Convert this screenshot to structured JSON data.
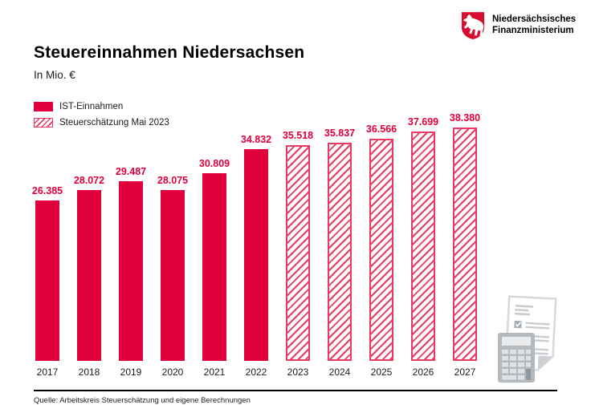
{
  "logo": {
    "org_line1": "Niedersächsisches",
    "org_line2": "Finanzministerium"
  },
  "header": {
    "title": "Steuereinnahmen Niedersachsen",
    "subtitle": "In Mio. €"
  },
  "legend": [
    {
      "label": "IST-Einnahmen",
      "style": "solid"
    },
    {
      "label": "Steuerschätzung Mai 2023",
      "style": "hatched"
    }
  ],
  "chart_data": {
    "type": "bar",
    "title": "Steuereinnahmen Niedersachsen",
    "unit": "In Mio. €",
    "categories": [
      "2017",
      "2018",
      "2019",
      "2020",
      "2021",
      "2022",
      "2023",
      "2024",
      "2025",
      "2026",
      "2027"
    ],
    "values": [
      26385,
      28072,
      29487,
      28075,
      30809,
      34832,
      35518,
      35837,
      36566,
      37699,
      38380
    ],
    "value_labels": [
      "26.385",
      "28.072",
      "29.487",
      "28.075",
      "30.809",
      "34.832",
      "35.518",
      "35.837",
      "36.566",
      "37.699",
      "38.380"
    ],
    "bar_styles": [
      "solid",
      "solid",
      "solid",
      "solid",
      "solid",
      "solid",
      "hatched",
      "hatched",
      "hatched",
      "hatched",
      "hatched"
    ],
    "series": [
      {
        "name": "IST-Einnahmen",
        "categories": [
          "2017",
          "2018",
          "2019",
          "2020",
          "2021",
          "2022"
        ],
        "values": [
          26385,
          28072,
          29487,
          28075,
          30809,
          34832
        ]
      },
      {
        "name": "Steuerschätzung Mai 2023",
        "categories": [
          "2023",
          "2024",
          "2025",
          "2026",
          "2027"
        ],
        "values": [
          35518,
          35837,
          36566,
          37699,
          38380
        ]
      }
    ],
    "ylim": [
      0,
      40000
    ],
    "grid": false,
    "legend_position": "top-left"
  },
  "footer": {
    "source": "Quelle: Arbeitskreis Steuerschätzung und eigene Berechnungen"
  },
  "colors": {
    "bar_solid": "#e0003c",
    "bar_hatch": "#ea3a62",
    "shield_red": "#d90d2f",
    "text_dark": "#1d1d1b",
    "illustration_gray": "#c7cbce"
  }
}
